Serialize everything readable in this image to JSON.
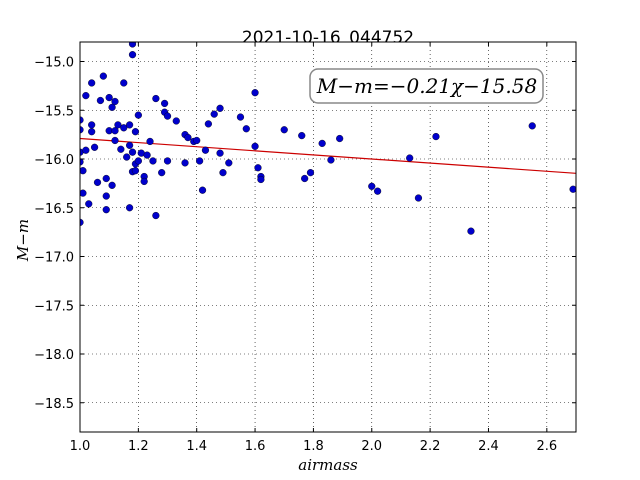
{
  "chart_data": {
    "type": "scatter",
    "title": "2021-10-16_044752",
    "xlabel": "airmass",
    "ylabel": "M−m",
    "xlim": [
      1.0,
      2.7
    ],
    "ylim": [
      -18.8,
      -14.8
    ],
    "y_inverted": true,
    "grid": true,
    "x_ticks": [
      1.0,
      1.2,
      1.4,
      1.6,
      1.8,
      2.0,
      2.2,
      2.4,
      2.6
    ],
    "x_tick_labels": [
      "1.0",
      "1.2",
      "1.4",
      "1.6",
      "1.8",
      "2.0",
      "2.2",
      "2.4",
      "2.6"
    ],
    "y_ticks": [
      -15.0,
      -15.5,
      -16.0,
      -16.5,
      -17.0,
      -17.5,
      -18.0,
      -18.5
    ],
    "y_tick_labels": [
      "−15.0",
      "−15.5",
      "−16.0",
      "−16.5",
      "−17.0",
      "−17.5",
      "−18.0",
      "−18.5"
    ],
    "annotation": "M−m=−0.21χ−15.58",
    "annotation_placement": "top-right",
    "fit": {
      "slope": -0.21,
      "intercept": -15.58,
      "color": "#cc0000"
    },
    "marker_color": "#0000cc",
    "points": [
      [
        1.0,
        -15.6
      ],
      [
        1.0,
        -15.7
      ],
      [
        1.0,
        -15.93
      ],
      [
        1.0,
        -16.03
      ],
      [
        1.0,
        -16.65
      ],
      [
        1.01,
        -16.12
      ],
      [
        1.01,
        -16.35
      ],
      [
        1.02,
        -15.35
      ],
      [
        1.02,
        -15.91
      ],
      [
        1.03,
        -16.46
      ],
      [
        1.04,
        -15.65
      ],
      [
        1.04,
        -15.72
      ],
      [
        1.04,
        -15.22
      ],
      [
        1.05,
        -15.88
      ],
      [
        1.06,
        -16.24
      ],
      [
        1.07,
        -15.4
      ],
      [
        1.08,
        -15.15
      ],
      [
        1.09,
        -16.2
      ],
      [
        1.09,
        -16.38
      ],
      [
        1.09,
        -16.52
      ],
      [
        1.1,
        -15.71
      ],
      [
        1.1,
        -15.37
      ],
      [
        1.11,
        -16.27
      ],
      [
        1.11,
        -15.47
      ],
      [
        1.12,
        -15.41
      ],
      [
        1.12,
        -15.71
      ],
      [
        1.12,
        -15.81
      ],
      [
        1.13,
        -15.65
      ],
      [
        1.14,
        -15.9
      ],
      [
        1.15,
        -15.22
      ],
      [
        1.15,
        -15.68
      ],
      [
        1.16,
        -15.98
      ],
      [
        1.17,
        -15.65
      ],
      [
        1.17,
        -15.86
      ],
      [
        1.17,
        -16.5
      ],
      [
        1.18,
        -15.93
      ],
      [
        1.18,
        -16.13
      ],
      [
        1.18,
        -14.82
      ],
      [
        1.18,
        -14.93
      ],
      [
        1.19,
        -15.72
      ],
      [
        1.19,
        -16.05
      ],
      [
        1.19,
        -16.12
      ],
      [
        1.2,
        -15.55
      ],
      [
        1.2,
        -16.02
      ],
      [
        1.21,
        -15.94
      ],
      [
        1.22,
        -16.18
      ],
      [
        1.22,
        -16.23
      ],
      [
        1.23,
        -15.96
      ],
      [
        1.24,
        -15.82
      ],
      [
        1.25,
        -16.02
      ],
      [
        1.26,
        -16.58
      ],
      [
        1.26,
        -15.38
      ],
      [
        1.28,
        -16.14
      ],
      [
        1.29,
        -15.43
      ],
      [
        1.29,
        -15.52
      ],
      [
        1.3,
        -15.56
      ],
      [
        1.3,
        -16.02
      ],
      [
        1.33,
        -15.61
      ],
      [
        1.36,
        -15.75
      ],
      [
        1.36,
        -16.04
      ],
      [
        1.37,
        -15.78
      ],
      [
        1.39,
        -15.82
      ],
      [
        1.4,
        -15.81
      ],
      [
        1.41,
        -16.02
      ],
      [
        1.42,
        -16.32
      ],
      [
        1.43,
        -15.91
      ],
      [
        1.44,
        -15.64
      ],
      [
        1.46,
        -15.54
      ],
      [
        1.48,
        -15.48
      ],
      [
        1.48,
        -15.94
      ],
      [
        1.49,
        -16.14
      ],
      [
        1.51,
        -16.04
      ],
      [
        1.55,
        -15.57
      ],
      [
        1.57,
        -15.69
      ],
      [
        1.6,
        -15.87
      ],
      [
        1.6,
        -15.32
      ],
      [
        1.61,
        -16.09
      ],
      [
        1.62,
        -16.18
      ],
      [
        1.62,
        -16.21
      ],
      [
        1.7,
        -15.7
      ],
      [
        1.76,
        -15.76
      ],
      [
        1.77,
        -16.2
      ],
      [
        1.79,
        -16.14
      ],
      [
        1.83,
        -15.84
      ],
      [
        1.86,
        -16.01
      ],
      [
        1.89,
        -15.79
      ],
      [
        2.0,
        -16.28
      ],
      [
        2.02,
        -16.33
      ],
      [
        2.13,
        -15.99
      ],
      [
        2.16,
        -16.4
      ],
      [
        2.22,
        -15.77
      ],
      [
        2.34,
        -16.74
      ],
      [
        2.55,
        -15.66
      ],
      [
        2.69,
        -16.31
      ]
    ]
  }
}
